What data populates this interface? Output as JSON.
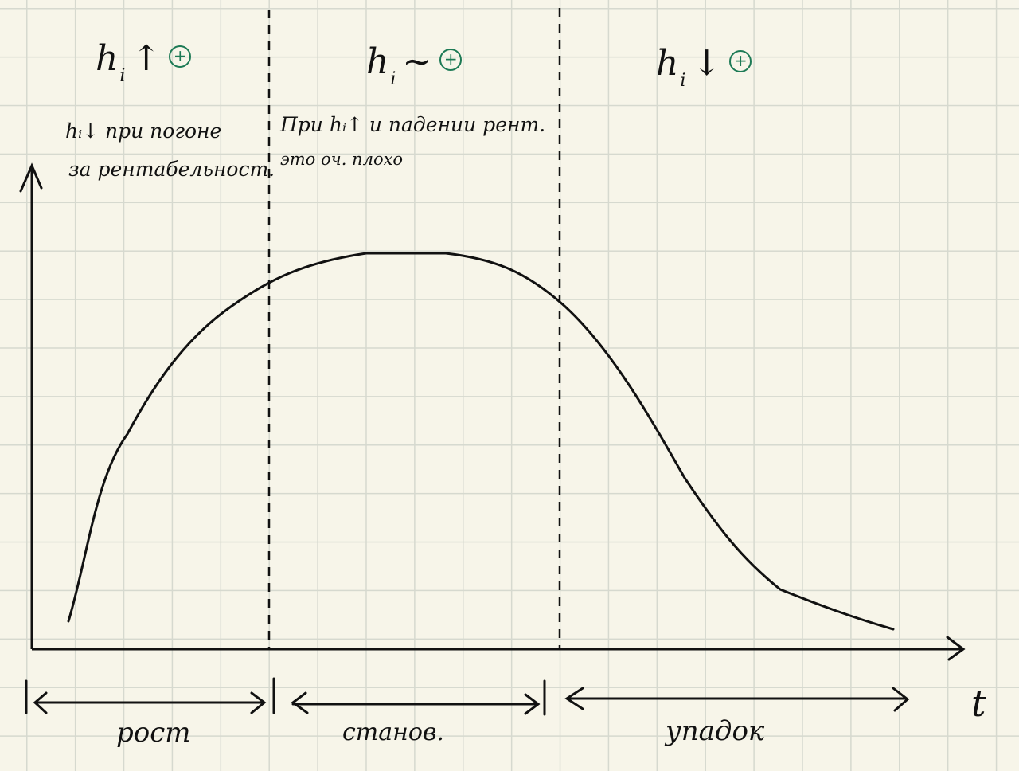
{
  "phases": [
    {
      "title_main": "h",
      "title_sub": "i",
      "title_arrow": "↑",
      "sign": "+",
      "label": "рост"
    },
    {
      "title_main": "h",
      "title_sub": "i",
      "title_arrow": "~",
      "sign": "+",
      "label": "станов."
    },
    {
      "title_main": "h",
      "title_sub": "i",
      "title_arrow": "↓",
      "sign": "+",
      "label": "упадок"
    }
  ],
  "notes": {
    "left_line1": "hᵢ↓ при погоне",
    "left_line2": "за рентабельност.",
    "middle_line1": "При hᵢ↑ и падении рент.",
    "middle_line2": "это оч. плохо"
  },
  "axis": {
    "x_label": "t"
  },
  "colors": {
    "ink": "#111111",
    "sign_green": "#1d7a55",
    "paper": "#f7f5e9",
    "grid": "#d6d9cf"
  }
}
